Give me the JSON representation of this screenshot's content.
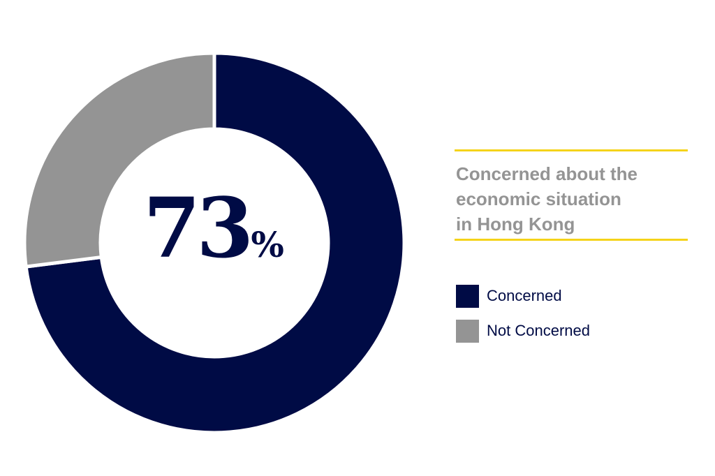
{
  "chart_data": {
    "type": "pie",
    "variant": "donut",
    "title": "Concerned about the economic situation in Hong Kong",
    "title_lines": [
      "Concerned about the",
      "economic situation",
      "in Hong Kong"
    ],
    "center_label": {
      "value": "73",
      "suffix": "%"
    },
    "slices": [
      {
        "label": "Concerned",
        "value": 73,
        "color": "#000b45"
      },
      {
        "label": "Not Concerned",
        "value": 27,
        "color": "#949494"
      }
    ],
    "legend_position": "right",
    "accent_color": "#f5d31a"
  }
}
